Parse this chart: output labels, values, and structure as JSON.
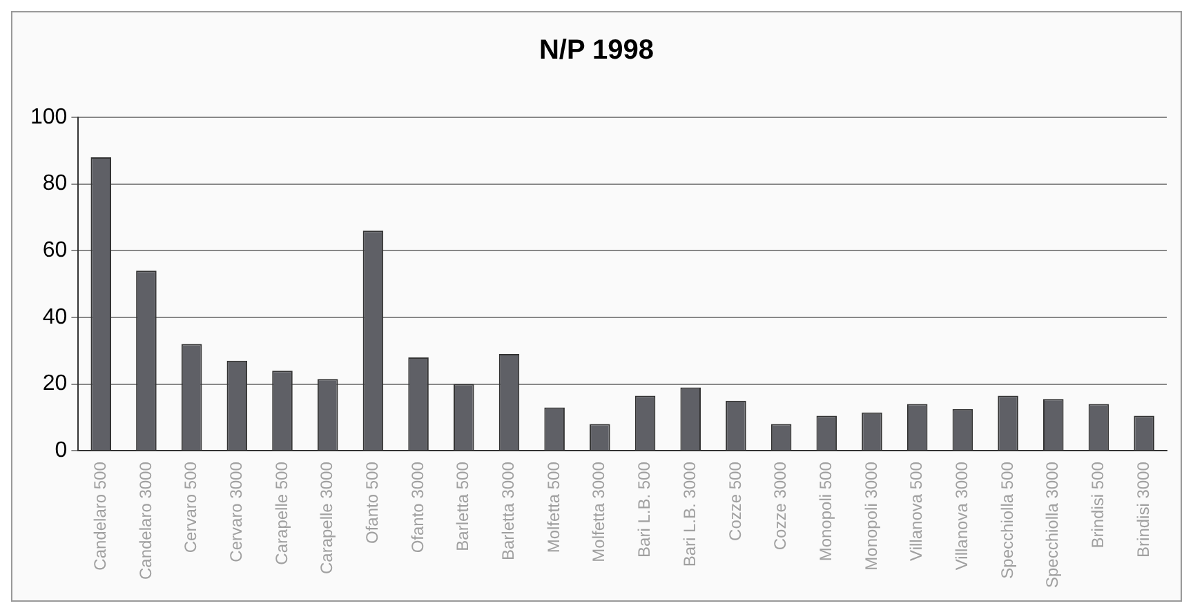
{
  "chart_data": {
    "type": "bar",
    "title": "N/P 1998",
    "categories": [
      "Candelaro 500",
      "Candelaro 3000",
      "Cervaro 500",
      "Cervaro 3000",
      "Carapelle 500",
      "Carapelle 3000",
      "Ofanto 500",
      "Ofanto 3000",
      "Barletta 500",
      "Barletta 3000",
      "Molfetta 500",
      "Molfetta 3000",
      "Bari L.B. 500",
      "Bari L.B. 3000",
      "Cozze 500",
      "Cozze 3000",
      "Monopoli 500",
      "Monopoli 3000",
      "Villanova 500",
      "Villanova 3000",
      "Specchiolla 500",
      "Specchiolla 3000",
      "Brindisi 500",
      "Brindisi 3000"
    ],
    "values": [
      88,
      54,
      32,
      27,
      24,
      21.5,
      66,
      28,
      20,
      29,
      13,
      8,
      16.5,
      19,
      15,
      8,
      10.5,
      11.5,
      14,
      12.5,
      16.5,
      15.5,
      14,
      10.5
    ],
    "color": "#5f6066",
    "ylim": [
      0,
      100
    ],
    "yticks": [
      0,
      20,
      40,
      60,
      80,
      100
    ],
    "grid": "y"
  }
}
